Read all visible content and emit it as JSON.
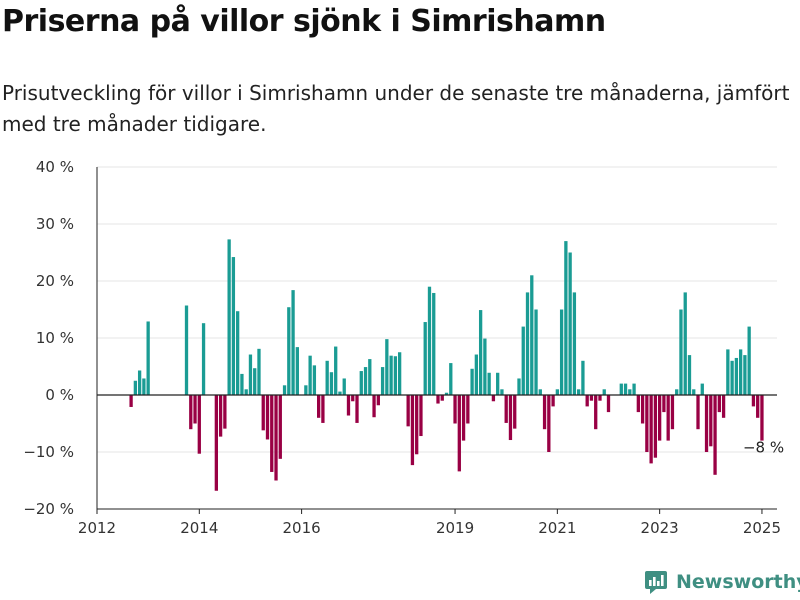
{
  "header": {
    "title": "Priserna på villor sjönk i Simrishamn",
    "subtitle": "Prisutveckling för villor i Simrishamn under de senaste tre månaderna, jämfört med tre månader tidigare."
  },
  "brand": {
    "name": "Newsworthy",
    "icon": "newsworthy-logo-icon"
  },
  "colors": {
    "positive": "#1a9c94",
    "negative": "#990044",
    "grid": "#e6e6e6",
    "axis": "#222222"
  },
  "chart_data": {
    "type": "bar",
    "title": "",
    "xlabel": "",
    "ylabel": "",
    "unit": "%",
    "ylim": [
      -20,
      40
    ],
    "yticks": [
      -20,
      -10,
      0,
      10,
      20,
      30,
      40
    ],
    "ytick_labels": [
      "−20 %",
      "−10 %",
      "0 %",
      "10 %",
      "20 %",
      "30 %",
      "40 %"
    ],
    "xlim": [
      "2012-01",
      "2025-06"
    ],
    "xticks": [
      "2012-01",
      "2014-01",
      "2016-01",
      "2019-01",
      "2021-01",
      "2023-01",
      "2025-01"
    ],
    "xtick_labels": [
      "2012",
      "2014",
      "2016",
      "2019",
      "2021",
      "2023",
      "2025"
    ],
    "grid": true,
    "legend": "none",
    "end_label": "−8 %",
    "series": [
      {
        "values": [
          {
            "month": "2012-09",
            "value": -2.1
          },
          {
            "month": "2012-10",
            "value": 2.5
          },
          {
            "month": "2012-11",
            "value": 4.3
          },
          {
            "month": "2012-12",
            "value": 2.9
          },
          {
            "month": "2013-01",
            "value": 12.9
          },
          {
            "month": "2013-10",
            "value": 15.7
          },
          {
            "month": "2013-11",
            "value": -6.0
          },
          {
            "month": "2013-12",
            "value": -5.0
          },
          {
            "month": "2014-01",
            "value": -10.3
          },
          {
            "month": "2014-02",
            "value": 12.6
          },
          {
            "month": "2014-05",
            "value": -16.8
          },
          {
            "month": "2014-06",
            "value": -7.3
          },
          {
            "month": "2014-07",
            "value": -5.9
          },
          {
            "month": "2014-08",
            "value": 27.3
          },
          {
            "month": "2014-09",
            "value": 24.2
          },
          {
            "month": "2014-10",
            "value": 14.7
          },
          {
            "month": "2014-11",
            "value": 3.7
          },
          {
            "month": "2014-12",
            "value": 1.0
          },
          {
            "month": "2015-01",
            "value": 7.1
          },
          {
            "month": "2015-02",
            "value": 4.7
          },
          {
            "month": "2015-03",
            "value": 8.1
          },
          {
            "month": "2015-04",
            "value": -6.2
          },
          {
            "month": "2015-05",
            "value": -7.8
          },
          {
            "month": "2015-06",
            "value": -13.5
          },
          {
            "month": "2015-07",
            "value": -15.0
          },
          {
            "month": "2015-08",
            "value": -11.2
          },
          {
            "month": "2015-09",
            "value": 1.7
          },
          {
            "month": "2015-10",
            "value": 15.4
          },
          {
            "month": "2015-11",
            "value": 18.4
          },
          {
            "month": "2015-12",
            "value": 8.4
          },
          {
            "month": "2016-02",
            "value": 1.7
          },
          {
            "month": "2016-03",
            "value": 6.9
          },
          {
            "month": "2016-04",
            "value": 5.2
          },
          {
            "month": "2016-05",
            "value": -4.0
          },
          {
            "month": "2016-06",
            "value": -4.9
          },
          {
            "month": "2016-07",
            "value": 6.0
          },
          {
            "month": "2016-08",
            "value": 4.0
          },
          {
            "month": "2016-09",
            "value": 8.5
          },
          {
            "month": "2016-10",
            "value": 0.6
          },
          {
            "month": "2016-11",
            "value": 2.9
          },
          {
            "month": "2016-12",
            "value": -3.6
          },
          {
            "month": "2017-01",
            "value": -1.1
          },
          {
            "month": "2017-02",
            "value": -4.9
          },
          {
            "month": "2017-03",
            "value": 4.2
          },
          {
            "month": "2017-04",
            "value": 4.9
          },
          {
            "month": "2017-05",
            "value": 6.3
          },
          {
            "month": "2017-06",
            "value": -3.9
          },
          {
            "month": "2017-07",
            "value": -1.8
          },
          {
            "month": "2017-08",
            "value": 4.9
          },
          {
            "month": "2017-09",
            "value": 9.8
          },
          {
            "month": "2017-10",
            "value": 6.9
          },
          {
            "month": "2017-11",
            "value": 6.8
          },
          {
            "month": "2017-12",
            "value": 7.5
          },
          {
            "month": "2018-02",
            "value": -5.5
          },
          {
            "month": "2018-03",
            "value": -12.3
          },
          {
            "month": "2018-04",
            "value": -10.4
          },
          {
            "month": "2018-05",
            "value": -7.2
          },
          {
            "month": "2018-06",
            "value": 12.8
          },
          {
            "month": "2018-07",
            "value": 19.0
          },
          {
            "month": "2018-08",
            "value": 17.9
          },
          {
            "month": "2018-09",
            "value": -1.5
          },
          {
            "month": "2018-10",
            "value": -1.0
          },
          {
            "month": "2018-11",
            "value": 0.4
          },
          {
            "month": "2018-12",
            "value": 5.6
          },
          {
            "month": "2019-01",
            "value": -5.0
          },
          {
            "month": "2019-02",
            "value": -13.4
          },
          {
            "month": "2019-03",
            "value": -8.0
          },
          {
            "month": "2019-04",
            "value": -5.0
          },
          {
            "month": "2019-05",
            "value": 4.6
          },
          {
            "month": "2019-06",
            "value": 7.1
          },
          {
            "month": "2019-07",
            "value": 14.9
          },
          {
            "month": "2019-08",
            "value": 9.9
          },
          {
            "month": "2019-09",
            "value": 3.9
          },
          {
            "month": "2019-10",
            "value": -1.1
          },
          {
            "month": "2019-11",
            "value": 3.9
          },
          {
            "month": "2019-12",
            "value": 1.0
          },
          {
            "month": "2020-01",
            "value": -4.9
          },
          {
            "month": "2020-02",
            "value": -7.9
          },
          {
            "month": "2020-03",
            "value": -5.9
          },
          {
            "month": "2020-04",
            "value": 2.9
          },
          {
            "month": "2020-05",
            "value": 12.0
          },
          {
            "month": "2020-06",
            "value": 18.0
          },
          {
            "month": "2020-07",
            "value": 21.0
          },
          {
            "month": "2020-08",
            "value": 15.0
          },
          {
            "month": "2020-09",
            "value": 1.0
          },
          {
            "month": "2020-10",
            "value": -6.0
          },
          {
            "month": "2020-11",
            "value": -10.0
          },
          {
            "month": "2020-12",
            "value": -2.0
          },
          {
            "month": "2021-01",
            "value": 1.0
          },
          {
            "month": "2021-02",
            "value": 15.0
          },
          {
            "month": "2021-03",
            "value": 27.0
          },
          {
            "month": "2021-04",
            "value": 25.0
          },
          {
            "month": "2021-05",
            "value": 18.0
          },
          {
            "month": "2021-06",
            "value": 1.0
          },
          {
            "month": "2021-07",
            "value": 6.0
          },
          {
            "month": "2021-08",
            "value": -2.0
          },
          {
            "month": "2021-09",
            "value": -1.0
          },
          {
            "month": "2021-10",
            "value": -6.0
          },
          {
            "month": "2021-11",
            "value": -1.0
          },
          {
            "month": "2021-12",
            "value": 1.0
          },
          {
            "month": "2022-01",
            "value": -3.0
          },
          {
            "month": "2022-04",
            "value": 2.0
          },
          {
            "month": "2022-05",
            "value": 2.0
          },
          {
            "month": "2022-06",
            "value": 1.0
          },
          {
            "month": "2022-07",
            "value": 2.0
          },
          {
            "month": "2022-08",
            "value": -3.0
          },
          {
            "month": "2022-09",
            "value": -5.0
          },
          {
            "month": "2022-10",
            "value": -10.0
          },
          {
            "month": "2022-11",
            "value": -12.0
          },
          {
            "month": "2022-12",
            "value": -11.0
          },
          {
            "month": "2023-01",
            "value": -8.0
          },
          {
            "month": "2023-02",
            "value": -3.0
          },
          {
            "month": "2023-03",
            "value": -8.0
          },
          {
            "month": "2023-04",
            "value": -6.0
          },
          {
            "month": "2023-05",
            "value": 1.0
          },
          {
            "month": "2023-06",
            "value": 15.0
          },
          {
            "month": "2023-07",
            "value": 18.0
          },
          {
            "month": "2023-08",
            "value": 7.0
          },
          {
            "month": "2023-09",
            "value": 1.0
          },
          {
            "month": "2023-10",
            "value": -6.0
          },
          {
            "month": "2023-11",
            "value": 2.0
          },
          {
            "month": "2023-12",
            "value": -10.0
          },
          {
            "month": "2024-01",
            "value": -9.0
          },
          {
            "month": "2024-02",
            "value": -14.0
          },
          {
            "month": "2024-03",
            "value": -3.0
          },
          {
            "month": "2024-04",
            "value": -4.0
          },
          {
            "month": "2024-05",
            "value": 8.0
          },
          {
            "month": "2024-06",
            "value": 6.0
          },
          {
            "month": "2024-07",
            "value": 6.5
          },
          {
            "month": "2024-08",
            "value": 8.0
          },
          {
            "month": "2024-09",
            "value": 7.0
          },
          {
            "month": "2024-10",
            "value": 12.0
          },
          {
            "month": "2024-11",
            "value": -2.0
          },
          {
            "month": "2024-12",
            "value": -4.0
          },
          {
            "month": "2025-01",
            "value": -8.0
          }
        ]
      }
    ]
  }
}
